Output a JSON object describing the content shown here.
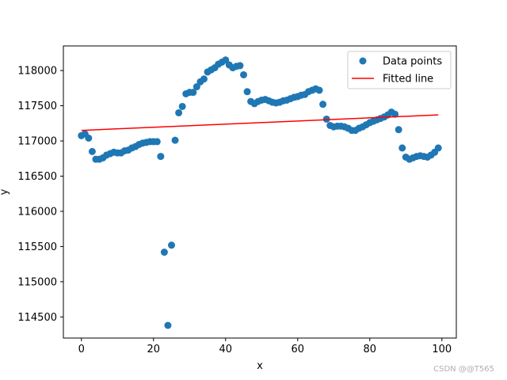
{
  "chart_data": {
    "type": "scatter",
    "title": "",
    "xlabel": "x",
    "ylabel": "y",
    "xlim": [
      -5,
      104
    ],
    "ylim": [
      114200,
      118350
    ],
    "xticks": [
      0,
      20,
      40,
      60,
      80,
      100
    ],
    "yticks": [
      114500,
      115000,
      115500,
      116000,
      116500,
      117000,
      117500,
      118000
    ],
    "grid": false,
    "legend_position": "top-right",
    "series": [
      {
        "name": "Data points",
        "kind": "scatter",
        "color": "#1f77b4",
        "x": [
          0,
          1,
          2,
          3,
          4,
          5,
          6,
          7,
          8,
          9,
          10,
          11,
          12,
          13,
          14,
          15,
          16,
          17,
          18,
          19,
          20,
          21,
          22,
          23,
          24,
          25,
          26,
          27,
          28,
          29,
          30,
          31,
          32,
          33,
          34,
          35,
          36,
          37,
          38,
          39,
          40,
          41,
          42,
          43,
          44,
          45,
          46,
          47,
          48,
          49,
          50,
          51,
          52,
          53,
          54,
          55,
          56,
          57,
          58,
          59,
          60,
          61,
          62,
          63,
          64,
          65,
          66,
          67,
          68,
          69,
          70,
          71,
          72,
          73,
          74,
          75,
          76,
          77,
          78,
          79,
          80,
          81,
          82,
          83,
          84,
          85,
          86,
          87,
          88,
          89,
          90,
          91,
          92,
          93,
          94,
          95,
          96,
          97,
          98,
          99
        ],
        "y": [
          117075,
          117100,
          117040,
          116850,
          116740,
          116740,
          116760,
          116800,
          116820,
          116840,
          116830,
          116830,
          116860,
          116870,
          116900,
          116920,
          116950,
          116970,
          116980,
          116990,
          116990,
          116990,
          116780,
          115420,
          114380,
          115520,
          117010,
          117400,
          117490,
          117670,
          117690,
          117690,
          117770,
          117840,
          117880,
          117980,
          118010,
          118040,
          118090,
          118120,
          118150,
          118080,
          118040,
          118060,
          118070,
          117940,
          117700,
          117560,
          117530,
          117560,
          117580,
          117590,
          117570,
          117550,
          117540,
          117550,
          117570,
          117580,
          117600,
          117620,
          117630,
          117650,
          117660,
          117700,
          117720,
          117740,
          117720,
          117520,
          117310,
          117220,
          117200,
          117210,
          117210,
          117200,
          117180,
          117150,
          117150,
          117180,
          117200,
          117230,
          117260,
          117280,
          117300,
          117320,
          117340,
          117370,
          117410,
          117380,
          117160,
          116900,
          116770,
          116740,
          116760,
          116780,
          116790,
          116780,
          116770,
          116800,
          116840,
          116900
        ]
      },
      {
        "name": "Fitted line",
        "kind": "line",
        "color": "#ff0000",
        "x": [
          0,
          99
        ],
        "y": [
          117150,
          117370
        ]
      }
    ]
  },
  "watermark": "CSDN @@T565"
}
